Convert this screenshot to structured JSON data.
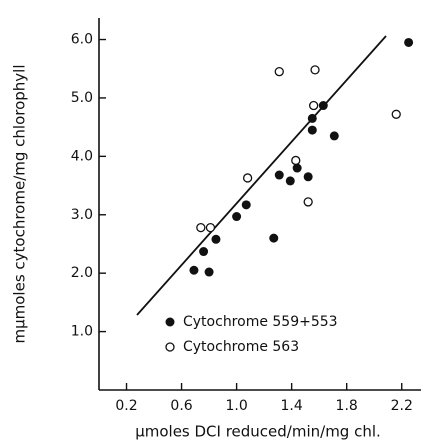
{
  "chart_data": {
    "type": "scatter",
    "x_label": "μmoles DCI reduced/min/mg chl.",
    "y_label": "mμmoles cytochrome/mg chlorophyll",
    "xlim": [
      0,
      2.34
    ],
    "ylim": [
      0,
      6.3
    ],
    "xticks": [
      0.2,
      0.6,
      {
        "value": 1.0,
        "label": "1.0"
      },
      1.4,
      1.8,
      2.2
    ],
    "yticks": [
      {
        "value": 1.0,
        "label": "1.0"
      },
      {
        "value": 2.0,
        "label": "2.0"
      },
      {
        "value": 3.0,
        "label": "3.0"
      },
      {
        "value": 4.0,
        "label": "4.0"
      },
      {
        "value": 5.0,
        "label": "5.0"
      },
      {
        "value": 6.0,
        "label": "6.0"
      }
    ],
    "series": [
      {
        "name": "Cytochrome 559+553",
        "color": "#111111",
        "marker": "filled",
        "x": [
          0.69,
          0.76,
          0.8,
          0.85,
          1.0,
          1.07,
          1.27,
          1.31,
          1.39,
          1.44,
          1.52,
          1.55,
          1.55,
          1.63,
          1.71,
          2.25
        ],
        "values": [
          2.05,
          2.37,
          2.02,
          2.58,
          2.97,
          3.17,
          2.6,
          3.68,
          3.58,
          3.8,
          3.65,
          4.45,
          4.65,
          4.87,
          4.35,
          5.95
        ]
      },
      {
        "name": "Cytochrome 563",
        "color": "#111111",
        "marker": "open",
        "x": [
          0.74,
          0.81,
          1.08,
          1.31,
          1.43,
          1.52,
          1.56,
          1.57,
          2.16
        ],
        "values": [
          2.78,
          2.78,
          3.63,
          5.45,
          3.93,
          3.22,
          4.87,
          5.48,
          4.72
        ]
      }
    ]
  }
}
